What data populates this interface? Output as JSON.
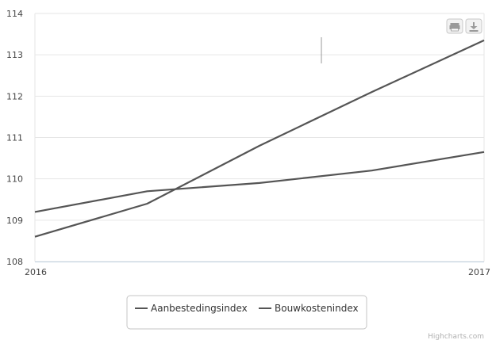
{
  "chart_data": {
    "type": "line",
    "x": [
      "2016",
      "",
      "",
      "",
      "2017"
    ],
    "x_tick_labels": [
      "2016",
      "2017"
    ],
    "series": [
      {
        "name": "Aanbestedingsindex",
        "values": [
          108.6,
          109.4,
          110.8,
          112.1,
          113.35
        ]
      },
      {
        "name": "Bouwkostenindex",
        "values": [
          109.2,
          109.7,
          109.9,
          110.2,
          110.65
        ]
      }
    ],
    "ylim": [
      108,
      114
    ],
    "y_ticks": [
      108,
      109,
      110,
      111,
      112,
      113,
      114
    ],
    "grid": "horizontal",
    "legend": "bottom-center",
    "colors": [
      "#555555",
      "#555555"
    ]
  },
  "toolbar": {
    "print_icon": "printer-icon",
    "export_icon": "download-icon"
  },
  "credits": "Highcharts.com"
}
